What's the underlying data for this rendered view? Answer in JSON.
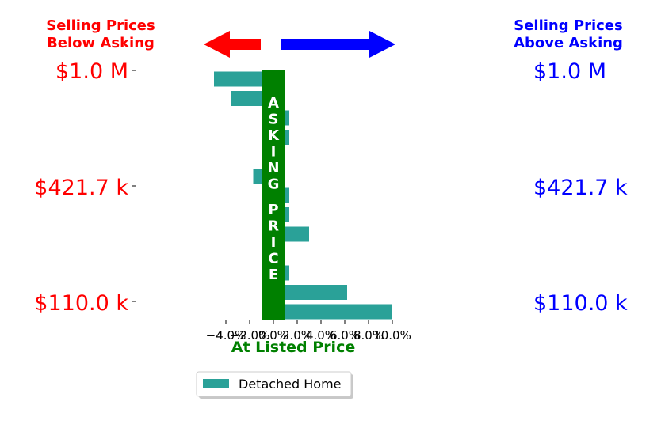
{
  "header": {
    "left_line1": "Selling Prices",
    "left_line2": "Below Asking",
    "right_line1": "Selling Prices",
    "right_line2": "Above Asking"
  },
  "colors": {
    "below": "#ff0000",
    "above": "#0000ff",
    "bar": "#2aa198",
    "band": "#008000",
    "band_text": "#ffffff"
  },
  "price_labels": {
    "left": [
      "$1.0 M",
      "$421.7 k",
      "$110.0 k"
    ],
    "right": [
      "$1.0 M",
      "$421.7 k",
      "$110.0 k"
    ]
  },
  "band": {
    "vertical_label_top": [
      "A",
      "S",
      "K",
      "I",
      "N",
      "G"
    ],
    "vertical_label_bottom": [
      "P",
      "R",
      "I",
      "C",
      "E"
    ]
  },
  "xaxis_label": "At Listed Price",
  "legend": {
    "label": "Detached Home"
  },
  "chart_data": {
    "type": "bar",
    "orientation": "horizontal",
    "series": [
      {
        "name": "Detached Home",
        "values": [
          -5.0,
          -3.6,
          0,
          0,
          0,
          -1.7,
          0,
          0,
          3.0,
          0,
          0,
          6.2,
          10.0
        ]
      }
    ],
    "categories_note_visible": false,
    "xlim": [
      -5.5,
      11.0
    ],
    "xticks": [
      -4.0,
      -2.0,
      0.0,
      2.0,
      4.0,
      6.0,
      8.0,
      10.0
    ],
    "xtick_labels": [
      "−4.0%",
      "−2.0%",
      "0.0%",
      "2.0%",
      "4.0%",
      "6.0%",
      "8.0%",
      "10.0%"
    ],
    "band_range": [
      -1.0,
      1.0
    ],
    "ytick_labels": [
      "$1.0 M",
      "$421.7 k",
      "$110.0 k"
    ],
    "legend_position": "bottom-center",
    "grid": false
  }
}
